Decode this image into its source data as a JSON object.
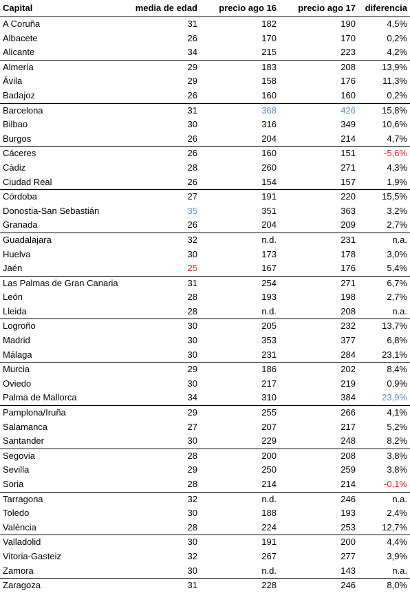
{
  "headers": {
    "capital": "Capital",
    "media": "media de edad",
    "p16": "precio ago 16",
    "p17": "precio ago 17",
    "dif": "diferencia"
  },
  "colors": {
    "blue_highlight": "#5b8fc8",
    "red_highlight": "#e02020"
  },
  "rows": [
    {
      "capital": "A Coruña",
      "media": "31",
      "p16": "182",
      "p17": "190",
      "dif": "4,5%",
      "g": true
    },
    {
      "capital": "Albacete",
      "media": "26",
      "p16": "170",
      "p17": "170",
      "dif": "0,2%"
    },
    {
      "capital": "Alicante",
      "media": "34",
      "p16": "215",
      "p17": "223",
      "dif": "4,2%"
    },
    {
      "capital": "Almería",
      "media": "29",
      "p16": "183",
      "p17": "208",
      "dif": "13,9%",
      "g": true
    },
    {
      "capital": "Ávila",
      "media": "29",
      "p16": "158",
      "p17": "176",
      "dif": "11,3%"
    },
    {
      "capital": "Badajoz",
      "media": "26",
      "p16": "160",
      "p17": "160",
      "dif": "0,2%"
    },
    {
      "capital": "Barcelona",
      "media": "31",
      "p16": "368",
      "p17": "426",
      "dif": "15,8%",
      "g": true,
      "hl": {
        "p16": "blue",
        "p17": "blue"
      }
    },
    {
      "capital": "Bilbao",
      "media": "30",
      "p16": "316",
      "p17": "349",
      "dif": "10,6%"
    },
    {
      "capital": "Burgos",
      "media": "26",
      "p16": "204",
      "p17": "214",
      "dif": "4,7%"
    },
    {
      "capital": "Cáceres",
      "media": "26",
      "p16": "160",
      "p17": "151",
      "dif": "-5,6%",
      "g": true,
      "hl": {
        "dif": "red"
      }
    },
    {
      "capital": "Cádiz",
      "media": "28",
      "p16": "260",
      "p17": "271",
      "dif": "4,3%"
    },
    {
      "capital": "Ciudad Real",
      "media": "26",
      "p16": "154",
      "p17": "157",
      "dif": "1,9%"
    },
    {
      "capital": "Córdoba",
      "media": "27",
      "p16": "191",
      "p17": "220",
      "dif": "15,5%",
      "g": true
    },
    {
      "capital": "Donostia-San Sebastián",
      "media": "35",
      "p16": "351",
      "p17": "363",
      "dif": "3,2%",
      "hl": {
        "media": "blue"
      }
    },
    {
      "capital": "Granada",
      "media": "26",
      "p16": "204",
      "p17": "209",
      "dif": "2,7%"
    },
    {
      "capital": "Guadalajara",
      "media": "32",
      "p16": "n.d.",
      "p17": "231",
      "dif": "n.a.",
      "g": true
    },
    {
      "capital": "Huelva",
      "media": "30",
      "p16": "173",
      "p17": "178",
      "dif": "3,0%"
    },
    {
      "capital": "Jaén",
      "media": "25",
      "p16": "167",
      "p17": "176",
      "dif": "5,4%",
      "hl": {
        "media": "red"
      }
    },
    {
      "capital": "Las Palmas de Gran Canaria",
      "media": "31",
      "p16": "254",
      "p17": "271",
      "dif": "6,7%",
      "g": true
    },
    {
      "capital": "León",
      "media": "28",
      "p16": "193",
      "p17": "198",
      "dif": "2,7%"
    },
    {
      "capital": "Lleida",
      "media": "28",
      "p16": "n.d.",
      "p17": "208",
      "dif": "n.a."
    },
    {
      "capital": "Logroño",
      "media": "30",
      "p16": "205",
      "p17": "232",
      "dif": "13,7%",
      "g": true
    },
    {
      "capital": "Madrid",
      "media": "30",
      "p16": "353",
      "p17": "377",
      "dif": "6,8%"
    },
    {
      "capital": "Málaga",
      "media": "30",
      "p16": "231",
      "p17": "284",
      "dif": "23,1%"
    },
    {
      "capital": "Murcia",
      "media": "29",
      "p16": "186",
      "p17": "202",
      "dif": "8,4%",
      "g": true
    },
    {
      "capital": "Oviedo",
      "media": "30",
      "p16": "217",
      "p17": "219",
      "dif": "0,9%"
    },
    {
      "capital": "Palma de Mallorca",
      "media": "34",
      "p16": "310",
      "p17": "384",
      "dif": "23,9%",
      "hl": {
        "dif": "blue"
      }
    },
    {
      "capital": "Pamplona/Iruña",
      "media": "29",
      "p16": "255",
      "p17": "266",
      "dif": "4,1%",
      "g": true
    },
    {
      "capital": "Salamanca",
      "media": "27",
      "p16": "207",
      "p17": "217",
      "dif": "5,2%"
    },
    {
      "capital": "Santander",
      "media": "30",
      "p16": "229",
      "p17": "248",
      "dif": "8,2%"
    },
    {
      "capital": "Segovia",
      "media": "28",
      "p16": "200",
      "p17": "208",
      "dif": "3,8%",
      "g": true
    },
    {
      "capital": "Sevilla",
      "media": "29",
      "p16": "250",
      "p17": "259",
      "dif": "3,8%"
    },
    {
      "capital": "Soria",
      "media": "28",
      "p16": "214",
      "p17": "214",
      "dif": "-0,1%",
      "hl": {
        "dif": "red"
      }
    },
    {
      "capital": "Tarragona",
      "media": "32",
      "p16": "n.d.",
      "p17": "246",
      "dif": "n.a.",
      "g": true
    },
    {
      "capital": "Toledo",
      "media": "30",
      "p16": "188",
      "p17": "193",
      "dif": "2,4%"
    },
    {
      "capital": "València",
      "media": "28",
      "p16": "224",
      "p17": "253",
      "dif": "12,7%"
    },
    {
      "capital": "Valladolid",
      "media": "30",
      "p16": "191",
      "p17": "200",
      "dif": "4,4%",
      "g": true
    },
    {
      "capital": "Vitoria-Gasteiz",
      "media": "32",
      "p16": "267",
      "p17": "277",
      "dif": "3,9%"
    },
    {
      "capital": "Zamora",
      "media": "30",
      "p16": "n.d.",
      "p17": "143",
      "dif": "n.a."
    },
    {
      "capital": "Zaragoza",
      "media": "31",
      "p16": "228",
      "p17": "246",
      "dif": "8,0%",
      "g": true
    }
  ]
}
